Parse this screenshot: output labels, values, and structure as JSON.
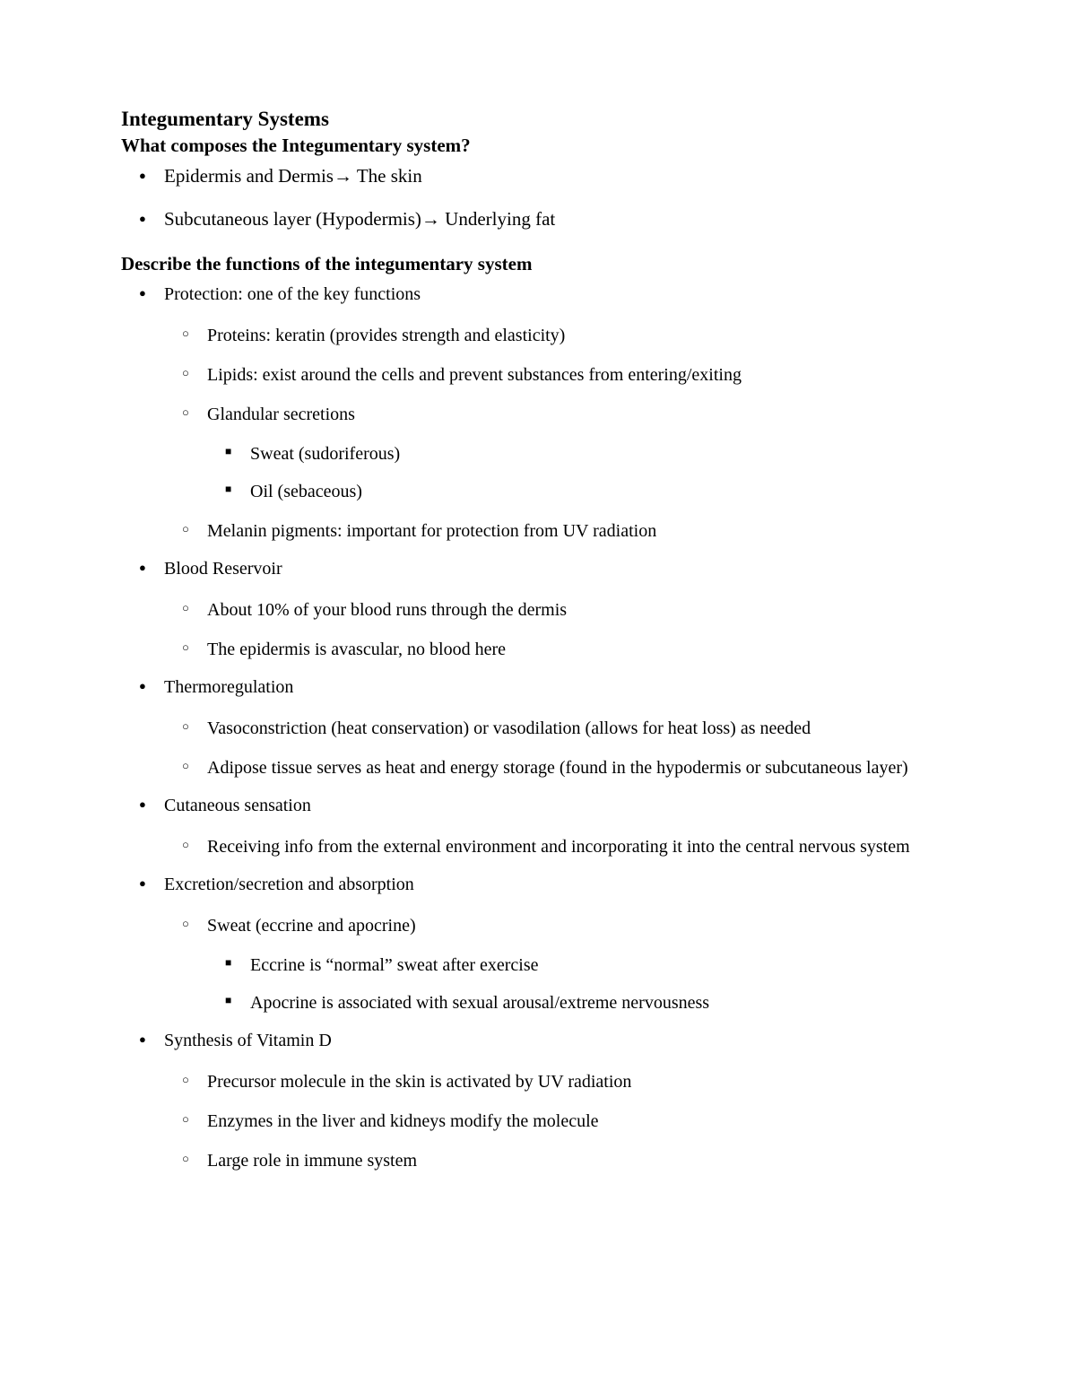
{
  "title": "Integumentary Systems",
  "section1": {
    "heading": "What composes the Integumentary system?",
    "items": [
      "Epidermis and Dermis→ The skin",
      "Subcutaneous layer (Hypodermis)→ Underlying fat"
    ]
  },
  "section2": {
    "heading": "Describe the functions of the integumentary system",
    "items": [
      {
        "text": "Protection: one of the key functions",
        "children": [
          {
            "text": "Proteins: keratin (provides strength and elasticity)"
          },
          {
            "text": "Lipids: exist around the cells and prevent substances from entering/exiting"
          },
          {
            "text": "Glandular secretions",
            "children": [
              {
                "text": "Sweat (sudoriferous)"
              },
              {
                "text": "Oil (sebaceous)"
              }
            ]
          },
          {
            "text": "Melanin pigments: important for protection from UV radiation"
          }
        ]
      },
      {
        "text": "Blood Reservoir",
        "children": [
          {
            "text": "About 10% of your blood runs through the dermis"
          },
          {
            "text": "The epidermis is avascular, no blood here"
          }
        ]
      },
      {
        "text": "Thermoregulation",
        "children": [
          {
            "text": "Vasoconstriction (heat conservation) or vasodilation (allows for heat loss)  as needed"
          },
          {
            "text": "Adipose tissue serves as heat and energy storage (found in the hypodermis or subcutaneous layer)"
          }
        ]
      },
      {
        "text": "Cutaneous sensation",
        "children": [
          {
            "text": "Receiving info from the external environment and incorporating it into the central nervous system"
          }
        ]
      },
      {
        "text": "Excretion/secretion and absorption",
        "children": [
          {
            "text": "Sweat (eccrine and apocrine)",
            "children": [
              {
                "text": "Eccrine is “normal” sweat after exercise"
              },
              {
                "text": "Apocrine is associated with sexual arousal/extreme nervousness"
              }
            ]
          }
        ]
      },
      {
        "text": "Synthesis of Vitamin D",
        "children": [
          {
            "text": "Precursor molecule in the skin is activated by UV radiation"
          },
          {
            "text": "Enzymes in the liver and kidneys modify the molecule"
          },
          {
            "text": "Large role in immune system"
          }
        ]
      }
    ]
  },
  "colors": {
    "text": "#000000",
    "background": "#ffffff"
  },
  "typography": {
    "title_fontsize": 23,
    "subtitle_fontsize": 21,
    "body_fontsize": 20,
    "font_family": "Georgia, Times New Roman, serif"
  }
}
